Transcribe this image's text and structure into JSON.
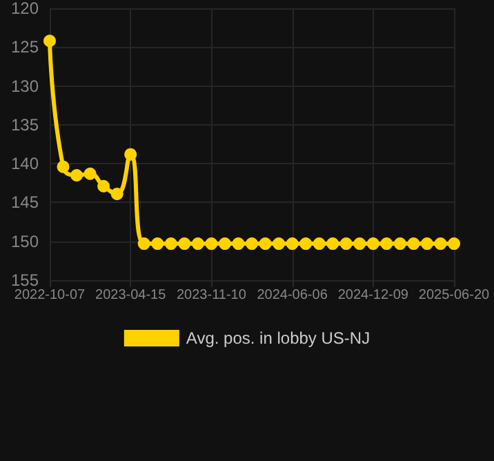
{
  "chart_data": {
    "type": "line",
    "categories": [
      "2022-10-07",
      null,
      null,
      null,
      null,
      null,
      "2023-04-15",
      null,
      null,
      null,
      null,
      null,
      "2023-11-10",
      null,
      null,
      null,
      null,
      null,
      "2024-06-06",
      null,
      null,
      null,
      null,
      null,
      "2024-12-09",
      null,
      null,
      null,
      null,
      null,
      "2025-06-20"
    ],
    "series": [
      {
        "name": "Avg. pos. in lobby US-NJ",
        "color": "#ffd200",
        "values": [
          124.2,
          140.4,
          141.5,
          141.3,
          142.9,
          143.9,
          138.8,
          150.3,
          150.3,
          150.3,
          150.3,
          150.3,
          150.3,
          150.3,
          150.3,
          150.3,
          150.3,
          150.3,
          150.3,
          150.3,
          150.3,
          150.3,
          150.3,
          150.3,
          150.3,
          150.3,
          150.3,
          150.3,
          150.3,
          150.3,
          150.3
        ]
      }
    ],
    "ylim": [
      155,
      120
    ],
    "yticks": [
      120,
      125,
      130,
      135,
      140,
      145,
      150,
      155
    ],
    "grid": true,
    "legend": "bottom",
    "marker": "circle",
    "line_style": "solid"
  }
}
